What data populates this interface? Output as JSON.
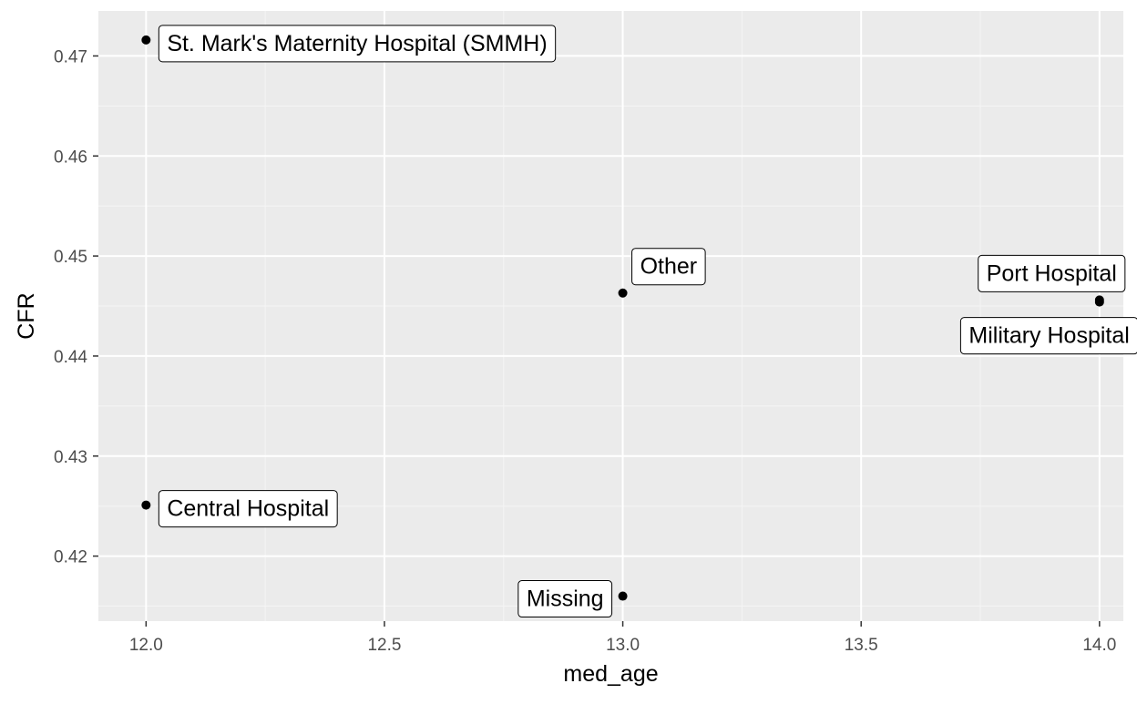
{
  "chart_data": {
    "type": "scatter",
    "title": "",
    "xlabel": "med_age",
    "ylabel": "CFR",
    "xlim": [
      11.9,
      14.05
    ],
    "ylim": [
      0.4135,
      0.4745
    ],
    "x_ticks": [
      12.0,
      12.5,
      13.0,
      13.5,
      14.0
    ],
    "x_tick_labels": [
      "12.0",
      "12.5",
      "13.0",
      "13.5",
      "14.0"
    ],
    "y_ticks": [
      0.42,
      0.43,
      0.44,
      0.45,
      0.46,
      0.47
    ],
    "y_tick_labels": [
      "0.42",
      "0.43",
      "0.44",
      "0.45",
      "0.46",
      "0.47"
    ],
    "grid": true,
    "legend": "none",
    "points": [
      {
        "label": "St. Mark's Maternity Hospital (SMMH)",
        "x": 12.0,
        "y": 0.4716
      },
      {
        "label": "Central Hospital",
        "x": 12.0,
        "y": 0.4251
      },
      {
        "label": "Other",
        "x": 13.0,
        "y": 0.4463
      },
      {
        "label": "Missing",
        "x": 13.0,
        "y": 0.416
      },
      {
        "label": "Port Hospital",
        "x": 14.0,
        "y": 0.4456
      },
      {
        "label": "Military Hospital",
        "x": 14.0,
        "y": 0.4454
      }
    ]
  },
  "colors": {
    "panel_background": "#ebebeb",
    "grid_major": "#ffffff",
    "grid_minor": "#f5f5f5",
    "point": "#000000",
    "tick_label": "#4d4d4d",
    "axis_title": "#000000"
  }
}
